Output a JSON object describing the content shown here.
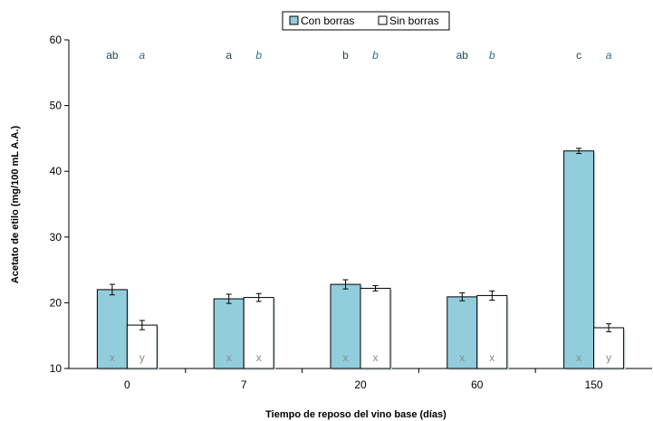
{
  "chart_data": {
    "type": "bar",
    "xlabel": "Tiempo de reposo del vino base (días)",
    "ylabel": "Acetato de etilo (mg/100 mL A.A.)",
    "ylim": [
      10,
      60
    ],
    "yticks": [
      10,
      20,
      30,
      40,
      50,
      60
    ],
    "categories": [
      "0",
      "7",
      "20",
      "60",
      "150"
    ],
    "grid": false,
    "legend_position": "top-center",
    "series": [
      {
        "name": "Con borras",
        "color": "#92cddc",
        "values": [
          22.0,
          20.6,
          22.8,
          20.9,
          43.1
        ],
        "errors": [
          0.8,
          0.7,
          0.7,
          0.6,
          0.4
        ],
        "letters_top": [
          "ab",
          "a",
          "b",
          "ab",
          "c"
        ],
        "letters_bottom": [
          "x",
          "x",
          "x",
          "x",
          "x"
        ]
      },
      {
        "name": "Sin borras",
        "color": "#ffffff",
        "values": [
          16.6,
          20.8,
          22.2,
          21.1,
          16.2
        ],
        "errors": [
          0.7,
          0.6,
          0.4,
          0.7,
          0.6
        ],
        "letters_top": [
          "a",
          "b",
          "b",
          "b",
          "a"
        ],
        "letters_bottom": [
          "y",
          "x",
          "x",
          "x",
          "y"
        ]
      }
    ]
  }
}
